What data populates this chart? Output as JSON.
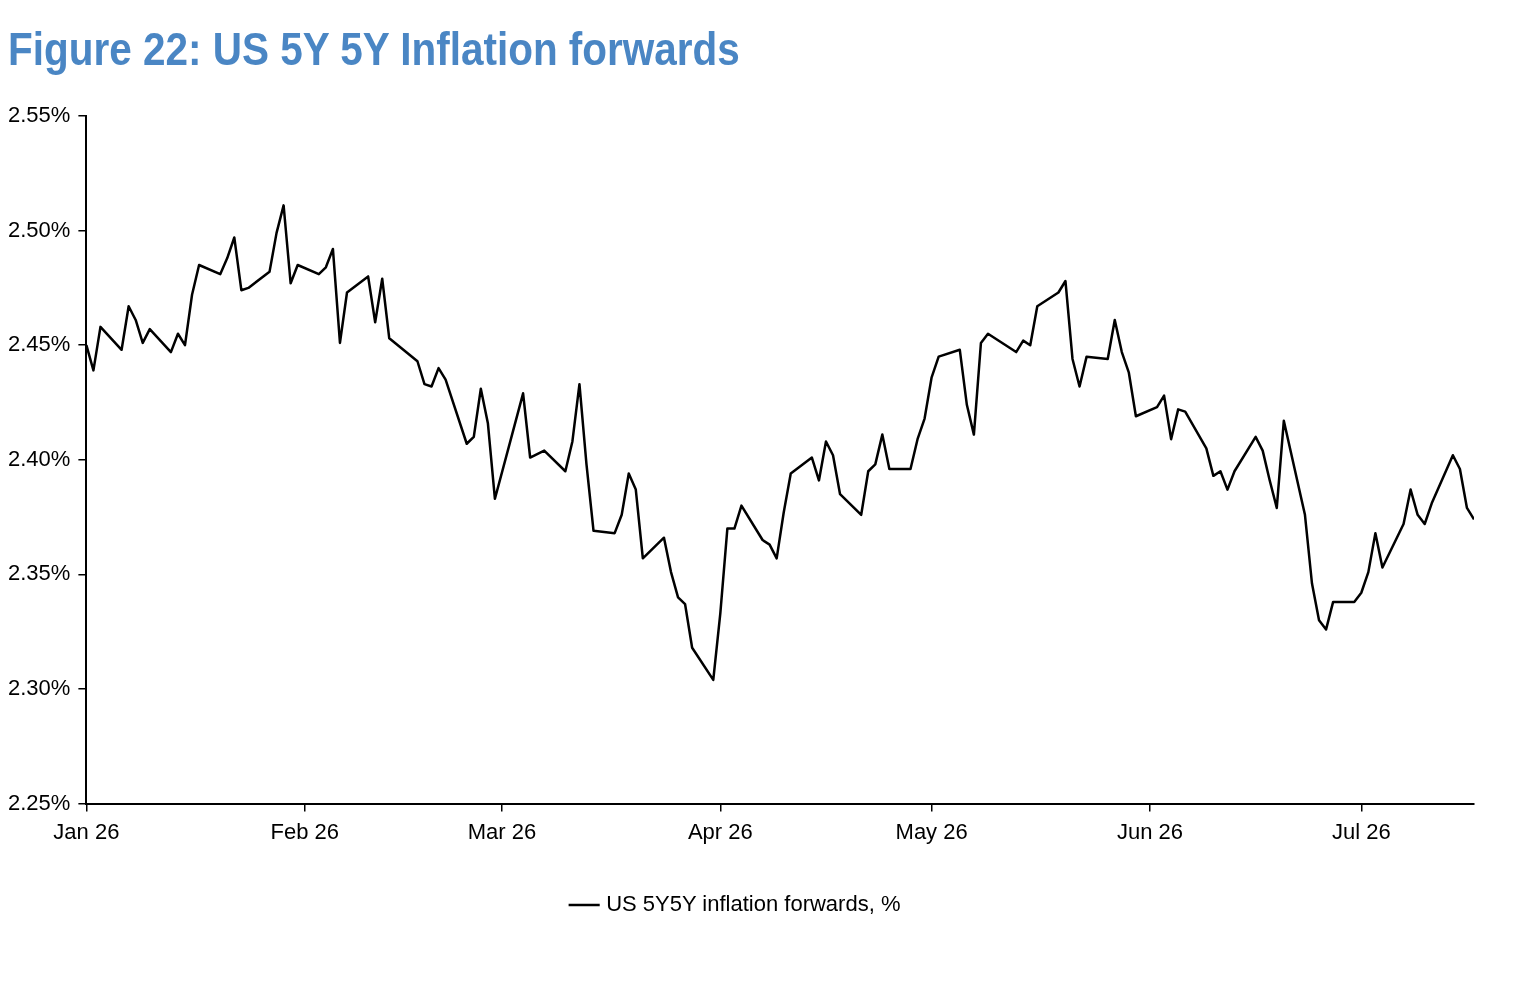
{
  "chart_data": {
    "type": "line",
    "title": "Figure 22: US 5Y 5Y Inflation forwards",
    "xlim": [
      "2026-01-01",
      "2026-07-17"
    ],
    "xticks": [
      {
        "value": "2026-01-01",
        "label": "Jan 26"
      },
      {
        "value": "2026-02-01",
        "label": "Feb 26"
      },
      {
        "value": "2026-03-01",
        "label": "Mar 26"
      },
      {
        "value": "2026-04-01",
        "label": "Apr 26"
      },
      {
        "value": "2026-05-01",
        "label": "May 26"
      },
      {
        "value": "2026-06-01",
        "label": "Jun 26"
      },
      {
        "value": "2026-07-01",
        "label": "Jul 26"
      }
    ],
    "ylim": [
      2.25,
      2.55
    ],
    "yticks": [
      {
        "value": 2.25,
        "label": "2.25%"
      },
      {
        "value": 2.3,
        "label": "2.30%"
      },
      {
        "value": 2.35,
        "label": "2.35%"
      },
      {
        "value": 2.4,
        "label": "2.40%"
      },
      {
        "value": 2.45,
        "label": "2.45%"
      },
      {
        "value": 2.5,
        "label": "2.50%"
      },
      {
        "value": 2.55,
        "label": "2.55%"
      }
    ],
    "grid": false,
    "legend": "bottom",
    "marker": "none",
    "line_style": "solid",
    "x": [
      "2026-01-01",
      "2026-01-02",
      "2026-01-03",
      "2026-01-06",
      "2026-01-07",
      "2026-01-08",
      "2026-01-09",
      "2026-01-10",
      "2026-01-13",
      "2026-01-14",
      "2026-01-15",
      "2026-01-16",
      "2026-01-17",
      "2026-01-20",
      "2026-01-21",
      "2026-01-22",
      "2026-01-23",
      "2026-01-24",
      "2026-01-27",
      "2026-01-28",
      "2026-01-29",
      "2026-01-30",
      "2026-01-31",
      "2026-02-03",
      "2026-02-04",
      "2026-02-05",
      "2026-02-06",
      "2026-02-07",
      "2026-02-10",
      "2026-02-11",
      "2026-02-12",
      "2026-02-13",
      "2026-02-17",
      "2026-02-18",
      "2026-02-19",
      "2026-02-20",
      "2026-02-21",
      "2026-02-24",
      "2026-02-25",
      "2026-02-26",
      "2026-02-27",
      "2026-02-28",
      "2026-03-04",
      "2026-03-05",
      "2026-03-07",
      "2026-03-10",
      "2026-03-11",
      "2026-03-12",
      "2026-03-13",
      "2026-03-14",
      "2026-03-17",
      "2026-03-18",
      "2026-03-19",
      "2026-03-20",
      "2026-03-21",
      "2026-03-24",
      "2026-03-25",
      "2026-03-26",
      "2026-03-27",
      "2026-03-28",
      "2026-03-31",
      "2026-04-01",
      "2026-04-02",
      "2026-04-03",
      "2026-04-04",
      "2026-04-07",
      "2026-04-08",
      "2026-04-09",
      "2026-04-10",
      "2026-04-11",
      "2026-04-14",
      "2026-04-15",
      "2026-04-16",
      "2026-04-17",
      "2026-04-18",
      "2026-04-21",
      "2026-04-22",
      "2026-04-23",
      "2026-04-24",
      "2026-04-25",
      "2026-04-28",
      "2026-04-29",
      "2026-04-30",
      "2026-05-01",
      "2026-05-02",
      "2026-05-05",
      "2026-05-06",
      "2026-05-07",
      "2026-05-08",
      "2026-05-09",
      "2026-05-13",
      "2026-05-14",
      "2026-05-15",
      "2026-05-16",
      "2026-05-19",
      "2026-05-20",
      "2026-05-21",
      "2026-05-22",
      "2026-05-23",
      "2026-05-26",
      "2026-05-27",
      "2026-05-28",
      "2026-05-29",
      "2026-05-30",
      "2026-06-02",
      "2026-06-03",
      "2026-06-04",
      "2026-06-05",
      "2026-06-06",
      "2026-06-09",
      "2026-06-10",
      "2026-06-11",
      "2026-06-12",
      "2026-06-13",
      "2026-06-16",
      "2026-06-17",
      "2026-06-18",
      "2026-06-19",
      "2026-06-20",
      "2026-06-23",
      "2026-06-24",
      "2026-06-25",
      "2026-06-26",
      "2026-06-27",
      "2026-06-30",
      "2026-07-01",
      "2026-07-02",
      "2026-07-03",
      "2026-07-04",
      "2026-07-07",
      "2026-07-08",
      "2026-07-09",
      "2026-07-10",
      "2026-07-11",
      "2026-07-14",
      "2026-07-15",
      "2026-07-16",
      "2026-07-17"
    ],
    "series": [
      {
        "name": "US 5Y5Y inflation forwards, %",
        "color": "#000000",
        "values": [
          2.45,
          2.439,
          2.458,
          2.448,
          2.467,
          2.461,
          2.451,
          2.457,
          2.447,
          2.455,
          2.45,
          2.472,
          2.485,
          2.481,
          2.488,
          2.497,
          2.474,
          2.475,
          2.482,
          2.499,
          2.511,
          2.477,
          2.485,
          2.481,
          2.484,
          2.492,
          2.451,
          2.473,
          2.48,
          2.46,
          2.479,
          2.453,
          2.443,
          2.433,
          2.432,
          2.44,
          2.435,
          2.407,
          2.41,
          2.431,
          2.416,
          2.383,
          2.429,
          2.401,
          2.404,
          2.395,
          2.408,
          2.433,
          2.398,
          2.369,
          2.368,
          2.376,
          2.394,
          2.387,
          2.357,
          2.366,
          2.351,
          2.34,
          2.337,
          2.318,
          2.304,
          2.333,
          2.37,
          2.37,
          2.38,
          2.365,
          2.363,
          2.357,
          2.377,
          2.394,
          2.401,
          2.391,
          2.408,
          2.402,
          2.385,
          2.376,
          2.395,
          2.398,
          2.411,
          2.396,
          2.396,
          2.409,
          2.418,
          2.436,
          2.445,
          2.448,
          2.424,
          2.411,
          2.451,
          2.455,
          2.447,
          2.452,
          2.45,
          2.467,
          2.473,
          2.478,
          2.444,
          2.432,
          2.445,
          2.444,
          2.461,
          2.447,
          2.438,
          2.419,
          2.423,
          2.428,
          2.409,
          2.422,
          2.421,
          2.405,
          2.393,
          2.395,
          2.387,
          2.395,
          2.41,
          2.404,
          2.391,
          2.379,
          2.417,
          2.376,
          2.346,
          2.33,
          2.326,
          2.338,
          2.338,
          2.342,
          2.351,
          2.368,
          2.353,
          2.372,
          2.387,
          2.376,
          2.372,
          2.381,
          2.402,
          2.396,
          2.379,
          2.374
        ]
      }
    ]
  }
}
